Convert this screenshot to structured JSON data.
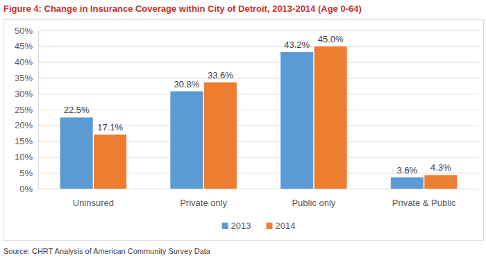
{
  "chart_data": {
    "type": "bar",
    "title": "Figure 4: Change in Insurance Coverage within City of Detroit, 2013-2014 (Age 0-64)",
    "source": "Source: CHRT Analysis of American Community Survey Data",
    "categories": [
      "Uninsured",
      "Private only",
      "Public only",
      "Private & Public"
    ],
    "series": [
      {
        "name": "2013",
        "color": "#5b9bd5",
        "values": [
          22.5,
          30.8,
          43.2,
          3.6
        ],
        "value_labels": [
          "22.5%",
          "30.8%",
          "43.2%",
          "3.6%"
        ]
      },
      {
        "name": "2014",
        "color": "#ed7d31",
        "values": [
          17.1,
          33.6,
          45.0,
          4.3
        ],
        "value_labels": [
          "17.1%",
          "33.6%",
          "45.0%",
          "4.3%"
        ]
      }
    ],
    "ylim": [
      0,
      50
    ],
    "yticks": [
      {
        "value": 0,
        "label": "0%"
      },
      {
        "value": 5,
        "label": "5%"
      },
      {
        "value": 10,
        "label": "10%"
      },
      {
        "value": 15,
        "label": "15%"
      },
      {
        "value": 20,
        "label": "20%"
      },
      {
        "value": 25,
        "label": "25%"
      },
      {
        "value": 30,
        "label": "30%"
      },
      {
        "value": 35,
        "label": "35%"
      },
      {
        "value": 40,
        "label": "40%"
      },
      {
        "value": 45,
        "label": "45%"
      },
      {
        "value": 50,
        "label": "50%"
      }
    ],
    "grid": true,
    "data_labels": true,
    "legend": "bottom"
  }
}
